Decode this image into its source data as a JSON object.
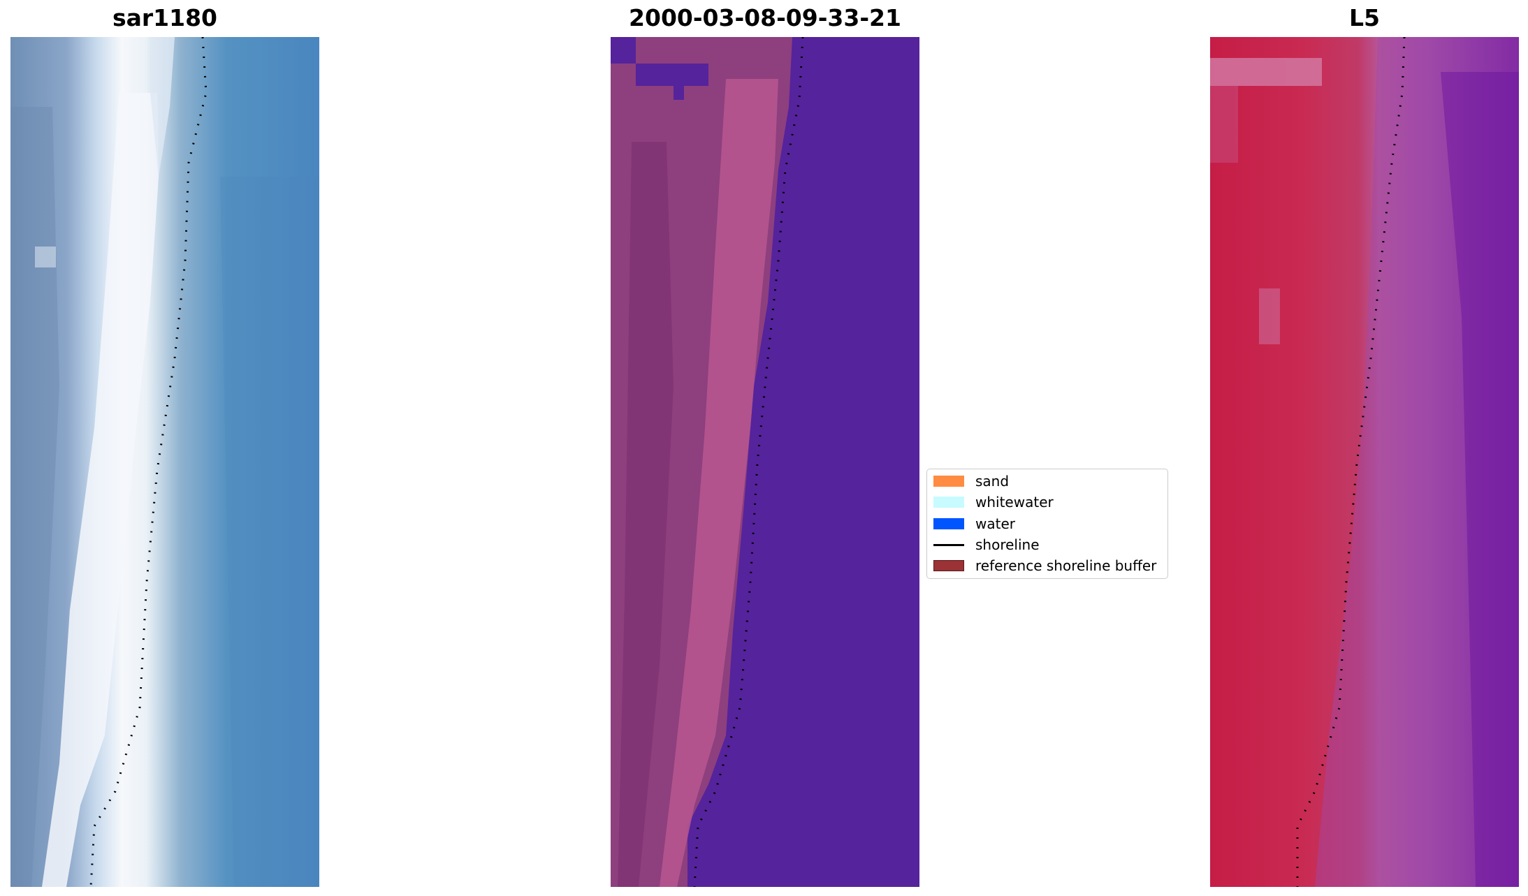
{
  "panels": [
    {
      "title": "sar1180"
    },
    {
      "title": "2000-03-08-09-33-21"
    },
    {
      "title": "L5"
    }
  ],
  "legend": {
    "items": [
      {
        "label": "sand",
        "color": "#ff8c42",
        "kind": "patch"
      },
      {
        "label": "whitewater",
        "color": "#c7fbff",
        "kind": "patch"
      },
      {
        "label": "water",
        "color": "#0055ff",
        "kind": "patch"
      },
      {
        "label": "shoreline",
        "color": "#000000",
        "kind": "line"
      },
      {
        "label": "reference shoreline buffer",
        "color": "#9b3235",
        "kind": "patch"
      }
    ]
  },
  "colors": {
    "classified_water": "#55239b",
    "classified_land": "#8e3f7e",
    "shoreline_dots": "#000000"
  }
}
